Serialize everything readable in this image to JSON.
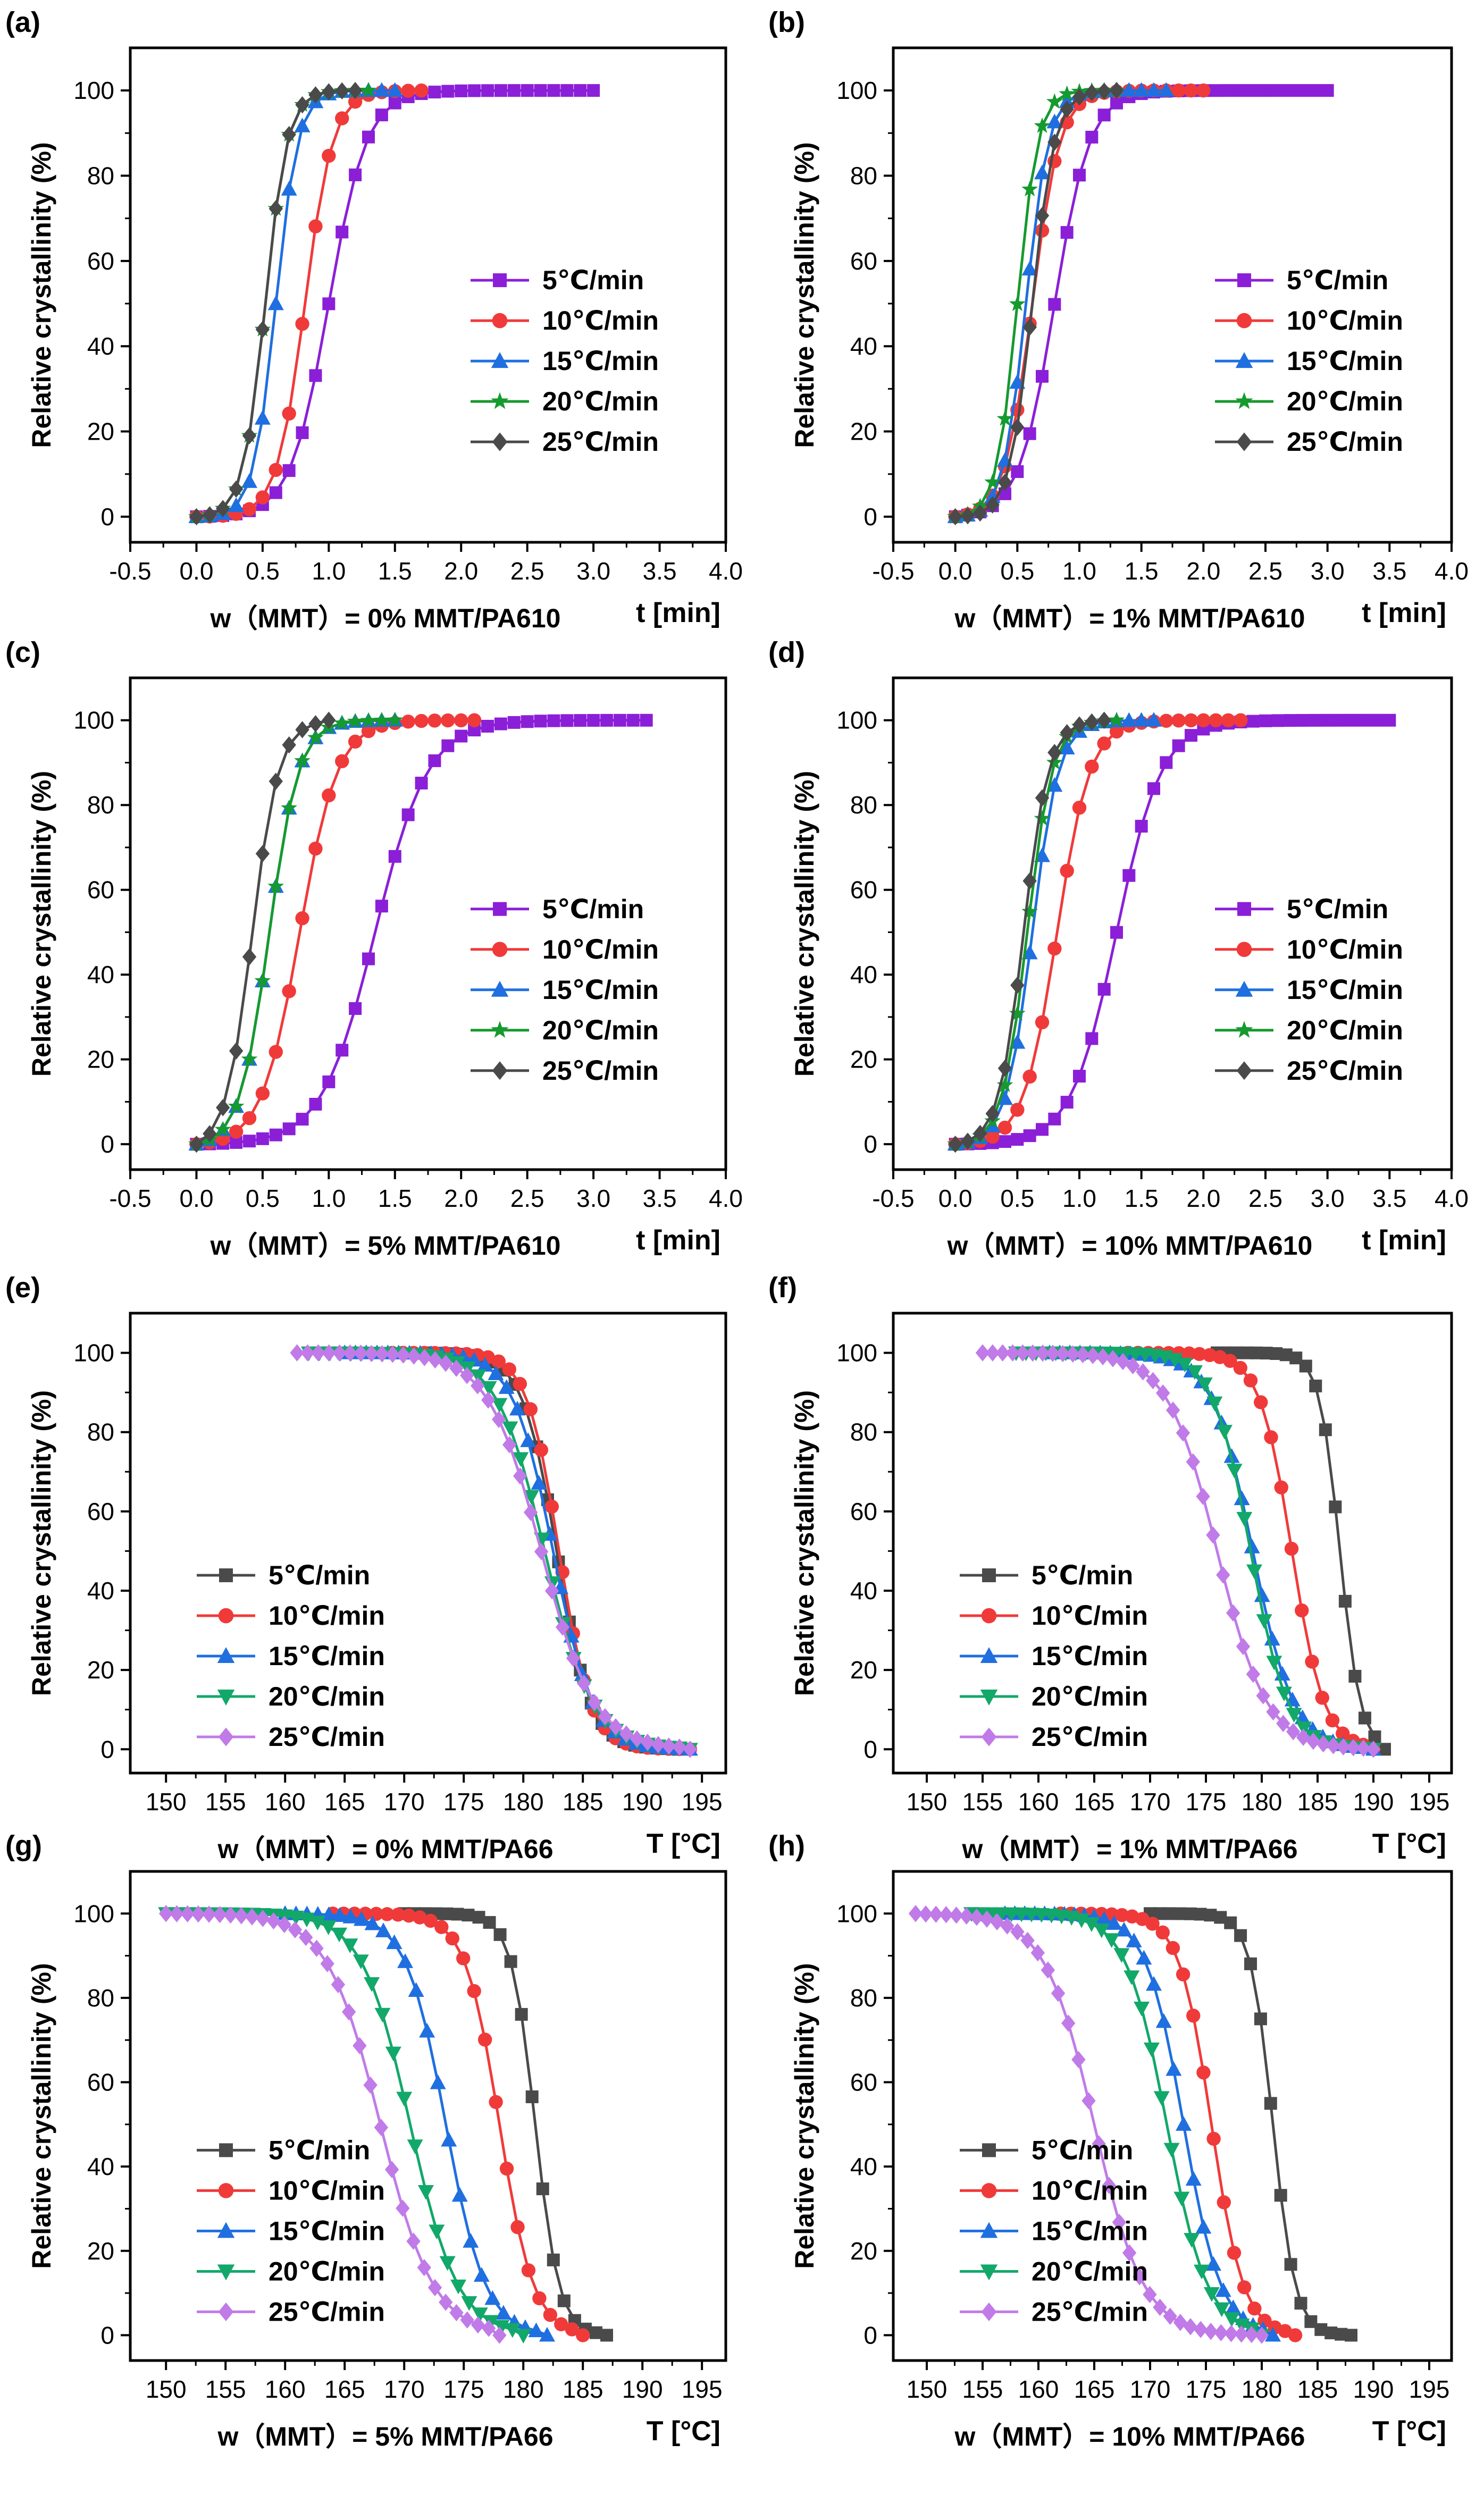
{
  "figure": {
    "ylabel": "Relative crystallinity (%)",
    "legend_labels": [
      "5℃/min",
      "10℃/min",
      "15℃/min",
      "20℃/min",
      "25℃/min"
    ],
    "series_colors": [
      "#8B1FD8",
      "#F03A3A",
      "#1F6FE0",
      "#159A2E",
      "#4A4A4A"
    ],
    "series_colors_pa66": [
      "#4A4A4A",
      "#F03A3A",
      "#1F6FE0",
      "#12A86A",
      "#C07BE8"
    ]
  },
  "chart_data": [
    {
      "type": "line",
      "panel": "(a)",
      "caption": "w（MMT）= 0% MMT/PA610",
      "xunit": "t [min]",
      "xlim": [
        -0.5,
        4.0
      ],
      "ylim": [
        -6,
        110
      ],
      "xticks": [
        "-0.5",
        "0.0",
        "0.5",
        "1.0",
        "1.5",
        "2.0",
        "2.5",
        "3.0",
        "3.5",
        "4.0"
      ],
      "yticks": [
        "0",
        "20",
        "40",
        "60",
        "80",
        "100"
      ],
      "series": [
        {
          "name": "5℃/min",
          "t_half": 1.0,
          "k": 7.0,
          "t_end": 3.0
        },
        {
          "name": "10℃/min",
          "t_half": 0.82,
          "k": 9.5,
          "t_end": 1.7
        },
        {
          "name": "15℃/min",
          "t_half": 0.6,
          "k": 12,
          "t_end": 1.5
        },
        {
          "name": "20℃/min",
          "t_half": 0.52,
          "k": 12,
          "t_end": 1.3
        },
        {
          "name": "25℃/min",
          "t_half": 0.52,
          "k": 12,
          "t_end": 1.2
        }
      ]
    },
    {
      "type": "line",
      "panel": "(b)",
      "caption": "w（MMT）= 1% MMT/PA610",
      "xunit": "t [min]",
      "xlim": [
        -0.5,
        4.0
      ],
      "ylim": [
        -6,
        110
      ],
      "xticks": [
        "-0.5",
        "0.0",
        "0.5",
        "1.0",
        "1.5",
        "2.0",
        "2.5",
        "3.0",
        "3.5",
        "4.0"
      ],
      "yticks": [
        "0",
        "20",
        "40",
        "60",
        "80",
        "100"
      ],
      "series": [
        {
          "name": "5℃/min",
          "t_half": 0.8,
          "k": 7.0,
          "t_end": 3.0
        },
        {
          "name": "10℃/min",
          "t_half": 0.62,
          "k": 9.0,
          "t_end": 2.0
        },
        {
          "name": "15℃/min",
          "t_half": 0.57,
          "k": 11,
          "t_end": 1.7
        },
        {
          "name": "20℃/min",
          "t_half": 0.5,
          "k": 12,
          "t_end": 1.3
        },
        {
          "name": "25℃/min",
          "t_half": 0.62,
          "k": 11,
          "t_end": 1.3
        }
      ]
    },
    {
      "type": "line",
      "panel": "(c)",
      "caption": "w（MMT）= 5% MMT/PA610",
      "xunit": "t [min]",
      "xlim": [
        -0.5,
        4.0
      ],
      "ylim": [
        -6,
        110
      ],
      "xticks": [
        "-0.5",
        "0.0",
        "0.5",
        "1.0",
        "1.5",
        "2.0",
        "2.5",
        "3.0",
        "3.5",
        "4.0"
      ],
      "yticks": [
        "0",
        "20",
        "40",
        "60",
        "80",
        "100"
      ],
      "series": [
        {
          "name": "5℃/min",
          "t_half": 1.35,
          "k": 5.0,
          "t_end": 3.4
        },
        {
          "name": "10℃/min",
          "t_half": 0.78,
          "k": 7.0,
          "t_end": 2.1
        },
        {
          "name": "15℃/min",
          "t_half": 0.55,
          "k": 9.0,
          "t_end": 1.5
        },
        {
          "name": "20℃/min",
          "t_half": 0.55,
          "k": 9.0,
          "t_end": 1.5
        },
        {
          "name": "25℃/min",
          "t_half": 0.42,
          "k": 10,
          "t_end": 1.0
        }
      ]
    },
    {
      "type": "line",
      "panel": "(d)",
      "caption": "w（MMT）= 10% MMT/PA610",
      "xunit": "t [min]",
      "xlim": [
        -0.5,
        4.0
      ],
      "ylim": [
        -6,
        110
      ],
      "xticks": [
        "-0.5",
        "0.0",
        "0.5",
        "1.0",
        "1.5",
        "2.0",
        "2.5",
        "3.0",
        "3.5",
        "4.0"
      ],
      "yticks": [
        "0",
        "20",
        "40",
        "60",
        "80",
        "100"
      ],
      "series": [
        {
          "name": "5℃/min",
          "t_half": 1.3,
          "k": 5.5,
          "t_end": 3.5
        },
        {
          "name": "10℃/min",
          "t_half": 0.82,
          "k": 7.5,
          "t_end": 2.3
        },
        {
          "name": "15℃/min",
          "t_half": 0.62,
          "k": 9.5,
          "t_end": 1.6
        },
        {
          "name": "20℃/min",
          "t_half": 0.58,
          "k": 10,
          "t_end": 1.3
        },
        {
          "name": "25℃/min",
          "t_half": 0.55,
          "k": 10,
          "t_end": 1.2
        }
      ]
    },
    {
      "type": "line",
      "panel": "(e)",
      "caption": "w（MMT）= 0% MMT/PA66",
      "xunit": "T [°C]",
      "xlim": [
        147,
        197
      ],
      "ylim": [
        -6,
        110
      ],
      "xticks": [
        "150",
        "155",
        "160",
        "165",
        "170",
        "175",
        "180",
        "185",
        "190",
        "195"
      ],
      "yticks": [
        "0",
        "20",
        "40",
        "60",
        "80",
        "100"
      ],
      "series": [
        {
          "name": "5℃/min",
          "T_half": 182.8,
          "k": 0.7,
          "T_start": 172,
          "T_end": 193
        },
        {
          "name": "10℃/min",
          "T_half": 183.0,
          "k": 0.75,
          "T_start": 169,
          "T_end": 194
        },
        {
          "name": "15℃/min",
          "T_half": 182.5,
          "k": 0.6,
          "T_start": 165,
          "T_end": 194
        },
        {
          "name": "20℃/min",
          "T_half": 181.8,
          "k": 0.5,
          "T_start": 162,
          "T_end": 194
        },
        {
          "name": "25℃/min",
          "T_half": 181.5,
          "k": 0.45,
          "T_start": 161,
          "T_end": 194
        }
      ]
    },
    {
      "type": "line",
      "panel": "(f)",
      "caption": "w（MMT）= 1% MMT/PA66",
      "xunit": "T [°C]",
      "xlim": [
        147,
        197
      ],
      "ylim": [
        -6,
        110
      ],
      "xticks": [
        "150",
        "155",
        "160",
        "165",
        "170",
        "175",
        "180",
        "185",
        "190",
        "195"
      ],
      "yticks": [
        "0",
        "20",
        "40",
        "60",
        "80",
        "100"
      ],
      "series": [
        {
          "name": "5℃/min",
          "T_half": 187.0,
          "k": 1.1,
          "T_start": 176,
          "T_end": 191
        },
        {
          "name": "10℃/min",
          "T_half": 182.7,
          "k": 0.7,
          "T_start": 168,
          "T_end": 190
        },
        {
          "name": "15℃/min",
          "T_half": 179.2,
          "k": 0.55,
          "T_start": 161,
          "T_end": 190
        },
        {
          "name": "20℃/min",
          "T_half": 179.0,
          "k": 0.6,
          "T_start": 158,
          "T_end": 190
        },
        {
          "name": "25℃/min",
          "T_half": 176.0,
          "k": 0.45,
          "T_start": 155,
          "T_end": 190
        }
      ]
    },
    {
      "type": "line",
      "panel": "(g)",
      "caption": "w（MMT）= 5% MMT/PA66",
      "xunit": "T [°C]",
      "xlim": [
        147,
        197
      ],
      "ylim": [
        -6,
        110
      ],
      "xticks": [
        "150",
        "155",
        "160",
        "165",
        "170",
        "175",
        "180",
        "185",
        "190",
        "195"
      ],
      "yticks": [
        "0",
        "20",
        "40",
        "60",
        "80",
        "100"
      ],
      "series": [
        {
          "name": "5℃/min",
          "T_half": 181.0,
          "k": 1.0,
          "T_start": 170,
          "T_end": 187
        },
        {
          "name": "10℃/min",
          "T_half": 178.0,
          "k": 0.7,
          "T_start": 164,
          "T_end": 185
        },
        {
          "name": "15℃/min",
          "T_half": 173.5,
          "k": 0.6,
          "T_start": 160,
          "T_end": 182
        },
        {
          "name": "20℃/min",
          "T_half": 170.5,
          "k": 0.5,
          "T_start": 150,
          "T_end": 180
        },
        {
          "name": "25℃/min",
          "T_half": 168.0,
          "k": 0.45,
          "T_start": 150,
          "T_end": 178
        }
      ]
    },
    {
      "type": "line",
      "panel": "(h)",
      "caption": "w（MMT）= 10% MMT/PA66",
      "xunit": "T [°C]",
      "xlim": [
        147,
        197
      ],
      "ylim": [
        -6,
        110
      ],
      "xticks": [
        "150",
        "155",
        "160",
        "165",
        "170",
        "175",
        "180",
        "185",
        "190",
        "195"
      ],
      "yticks": [
        "0",
        "20",
        "40",
        "60",
        "80",
        "100"
      ],
      "series": [
        {
          "name": "5℃/min",
          "T_half": 181.0,
          "k": 1.0,
          "T_start": 170,
          "T_end": 188
        },
        {
          "name": "10℃/min",
          "T_half": 175.5,
          "k": 0.7,
          "T_start": 162,
          "T_end": 183
        },
        {
          "name": "15℃/min",
          "T_half": 173.0,
          "k": 0.6,
          "T_start": 157,
          "T_end": 181
        },
        {
          "name": "20℃/min",
          "T_half": 171.5,
          "k": 0.55,
          "T_start": 154,
          "T_end": 180
        },
        {
          "name": "25℃/min",
          "T_half": 165.0,
          "k": 0.45,
          "T_start": 149,
          "T_end": 180
        }
      ]
    }
  ]
}
